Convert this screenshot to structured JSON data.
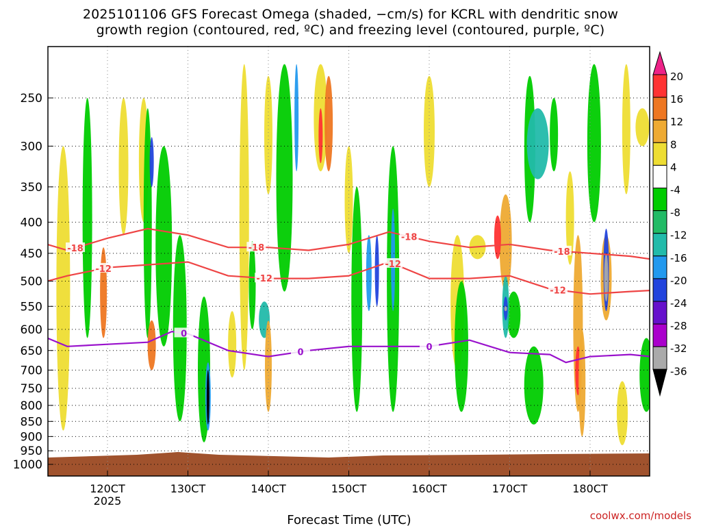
{
  "chart_data": {
    "type": "heatmap",
    "title_lines": [
      "2025101106 GFS Forecast Omega (shaded, −cm/s) for KCRL with dendritic snow",
      "growth region (contoured, red, ºC) and freezing level (contoured, purple, ºC)"
    ],
    "xlabel": "Forecast Time (UTC)",
    "x_ticks": [
      "120CT",
      "130CT",
      "140CT",
      "150CT",
      "160CT",
      "170CT",
      "180CT"
    ],
    "x_tick_year": "2025",
    "y_ticks": [
      250,
      300,
      350,
      400,
      450,
      500,
      550,
      600,
      650,
      700,
      750,
      800,
      850,
      900,
      950,
      1000
    ],
    "ylim": [
      1050,
      200
    ],
    "y_scale": "log-pressure",
    "grid": true,
    "colorbar": {
      "tick_labels": [
        "20",
        "16",
        "12",
        "8",
        "4",
        "-4",
        "-8",
        "-12",
        "-16",
        "-20",
        "-24",
        "-28",
        "-32",
        "-36"
      ],
      "colors": [
        "#ee2288",
        "#ff3333",
        "#ee7722",
        "#eeaa33",
        "#eedd33",
        "#ffffff",
        "#00cc00",
        "#22bb66",
        "#22bbaa",
        "#2299ee",
        "#2244dd",
        "#6611cc",
        "#aa00cc",
        "#aaaaaa",
        "#000000"
      ]
    },
    "contour_series": [
      {
        "name": "-18",
        "color": "#ee4444",
        "x": [
          11.25,
          11.5,
          12,
          12.5,
          13,
          13.5,
          14,
          14.5,
          15,
          15.5,
          16,
          16.5,
          17,
          17.5,
          18,
          18.5,
          18.75
        ],
        "y": [
          435,
          445,
          425,
          410,
          420,
          440,
          440,
          445,
          435,
          415,
          430,
          440,
          435,
          445,
          450,
          455,
          460
        ],
        "labels": [
          {
            "text": "-18",
            "x": 11.6
          },
          {
            "text": "-18",
            "x": 13.85
          },
          {
            "text": "-18",
            "x": 15.75
          },
          {
            "text": "-18",
            "x": 17.65
          }
        ]
      },
      {
        "name": "-12",
        "color": "#ee4444",
        "x": [
          11.25,
          11.5,
          12,
          12.5,
          13,
          13.5,
          14,
          14.5,
          15,
          15.5,
          16,
          16.5,
          17,
          17.5,
          18,
          18.5,
          18.75
        ],
        "y": [
          500,
          490,
          475,
          470,
          465,
          490,
          495,
          495,
          490,
          465,
          495,
          495,
          490,
          515,
          525,
          520,
          518
        ],
        "labels": [
          {
            "text": "-12",
            "x": 11.95
          },
          {
            "text": "-12",
            "x": 13.95
          },
          {
            "text": "-12",
            "x": 15.55
          },
          {
            "text": "-12",
            "x": 17.6
          }
        ]
      },
      {
        "name": "0",
        "color": "#9911cc",
        "x": [
          11.25,
          11.5,
          12,
          12.5,
          12.8,
          13,
          13.5,
          14,
          14.5,
          15,
          15.5,
          16,
          16.5,
          17,
          17.5,
          17.7,
          18,
          18.5,
          18.75
        ],
        "y": [
          620,
          640,
          635,
          630,
          605,
          610,
          650,
          665,
          650,
          640,
          640,
          640,
          625,
          655,
          660,
          680,
          665,
          660,
          665
        ],
        "labels": [
          {
            "text": "0",
            "x": 12.95
          },
          {
            "text": "0",
            "x": 14.4
          },
          {
            "text": "0",
            "x": 16.0
          }
        ]
      }
    ]
  },
  "credit": "coolwx.com/models"
}
